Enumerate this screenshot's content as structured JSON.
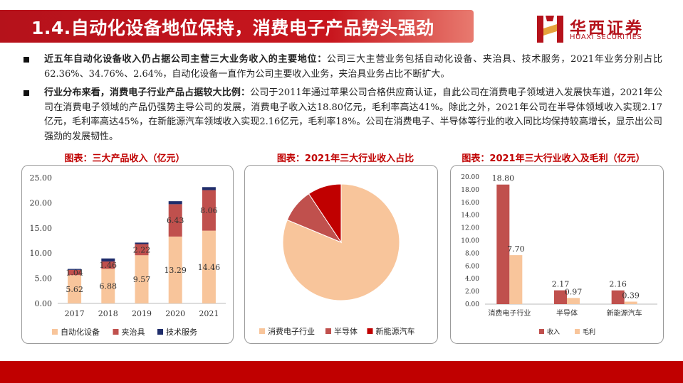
{
  "header": {
    "title": "1.4.自动化设备地位保持，消费电子产品势头强劲"
  },
  "logo": {
    "name": "华西证券",
    "en": "HUAXI SECURITIES"
  },
  "bullets": [
    {
      "bold": "近五年自动化设备收入仍占据公司主营三大业务收入的主要地位：",
      "text": "公司三大主营业务包括自动化设备、夹治具、技术服务，2021年业务分别占比62.36%、34.76%、2.64%，自动化设备一直作为公司主要收入业务，夹治具业务占比不断扩大。"
    },
    {
      "bold": "行业分布来看，消费电子行业产品占据较大比例：",
      "text": "公司于2011年通过苹果公司合格供应商认证，自此公司在消费电子领域进入发展快车道，2021年公司在消费电子领域的产品仍强势主导公司的发展，消费电子收入达18.80亿元，毛利率高达41%。除此之外，2021年公司在半导体领域收入实现2.17亿元，毛利率高达45%，在新能源汽车领域收入实现2.16亿元，毛利率18%。公司在消费电子、半导体等行业的收入同比均保持较高增长，显示出公司强劲的发展韧性。"
    }
  ],
  "colors": {
    "brand": "#c00000",
    "orange": "#f8c59b",
    "red": "#c0504d",
    "navy": "#1f2d6b",
    "darkred": "#c00000"
  },
  "chart_data": [
    {
      "type": "bar",
      "stacked": true,
      "title": "图表：三大产品收入（亿元）",
      "categories": [
        "2017",
        "2018",
        "2019",
        "2020",
        "2021"
      ],
      "series": [
        {
          "name": "自动化设备",
          "values": [
            5.62,
            6.88,
            9.57,
            13.29,
            14.46
          ],
          "color": "#f8c59b"
        },
        {
          "name": "夹治具",
          "values": [
            1.04,
            1.46,
            2.22,
            6.43,
            8.06
          ],
          "color": "#c0504d"
        },
        {
          "name": "技术服务",
          "values": [
            0.2,
            0.6,
            0.3,
            0.6,
            0.6
          ],
          "color": "#1f2d6b"
        }
      ],
      "data_labels": [
        [
          "5.62",
          "6.88",
          "9.57",
          "13.29",
          "14.46"
        ],
        [
          "1.04",
          "1.46",
          "2.22",
          "6.43",
          "8.06"
        ]
      ],
      "ylim": [
        0,
        25
      ],
      "yticks": [
        "0.00",
        "5.00",
        "10.00",
        "15.00",
        "20.00",
        "25.00"
      ],
      "legend": "bottom"
    },
    {
      "type": "pie",
      "title": "图表：2021年三大行业收入占比",
      "labels": [
        "消费电子行业",
        "半导体",
        "新能源汽车"
      ],
      "values": [
        18.8,
        2.17,
        2.16
      ],
      "colors": [
        "#f8c59b",
        "#c0504d",
        "#c00000"
      ],
      "legend": "bottom"
    },
    {
      "type": "bar",
      "title": "图表：2021年三大行业收入及毛利（亿元）",
      "categories": [
        "消费电子行业",
        "半导体",
        "新能源汽车"
      ],
      "series": [
        {
          "name": "收入",
          "values": [
            18.8,
            2.17,
            2.16
          ],
          "labels": [
            "18.80",
            "2.17",
            "2.16"
          ],
          "color": "#c0504d"
        },
        {
          "name": "毛利",
          "values": [
            7.7,
            0.97,
            0.39
          ],
          "labels": [
            "7.70",
            "0.97",
            "0.39"
          ],
          "color": "#f8c59b"
        }
      ],
      "ylim": [
        0,
        20
      ],
      "yticks": [
        "0.00",
        "2.00",
        "4.00",
        "6.00",
        "8.00",
        "10.00",
        "12.00",
        "14.00",
        "16.00",
        "18.00",
        "20.00"
      ],
      "legend": "bottom"
    }
  ]
}
